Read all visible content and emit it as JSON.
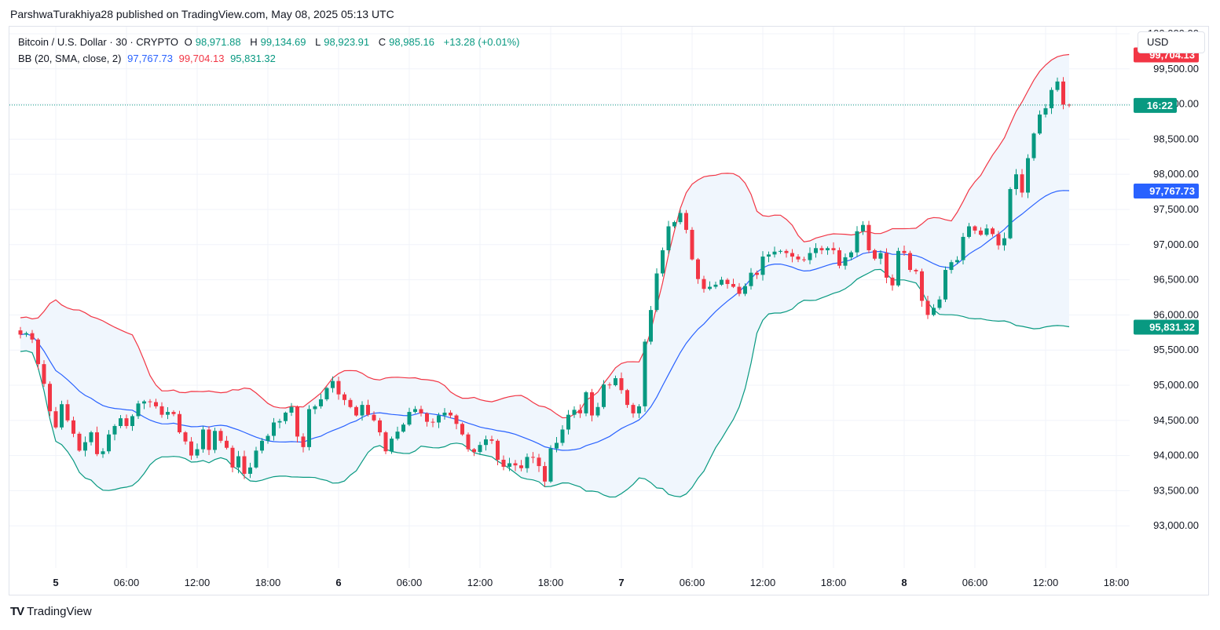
{
  "header": {
    "publish_line": "ParshwaTurakhiya28 published on TradingView.com, May 08, 2025 05:13 UTC"
  },
  "legend": {
    "symbol": "Bitcoin / U.S. Dollar · 30 · CRYPTO",
    "o_label": "O",
    "o_value": "98,971.88",
    "h_label": "H",
    "h_value": "99,134.69",
    "l_label": "L",
    "l_value": "98,923.91",
    "c_label": "C",
    "c_value": "98,985.16",
    "change": "+13.28 (+0.01%)",
    "indicator": "BB (20, SMA, close, 2)",
    "bb_mid": "97,767.73",
    "bb_upper": "99,704.13",
    "bb_lower": "95,831.32"
  },
  "price_scale": {
    "currency": "USD",
    "countdown_label": "16:22"
  },
  "brand": {
    "logo": "TV",
    "name": "TradingView"
  },
  "colors": {
    "up": "#089981",
    "down": "#f23645",
    "bb_mid": "#2962ff",
    "bb_upper": "#f23645",
    "bb_lower": "#089981",
    "bb_fill": "#f0f6fd",
    "grid": "#f0f3fa",
    "axis_text": "#131722"
  },
  "chart_data": {
    "type": "candlestick",
    "y_ticks": [
      93000,
      93500,
      94000,
      94500,
      95000,
      95500,
      96000,
      96500,
      97000,
      97500,
      98000,
      98500,
      99000,
      99500,
      100000
    ],
    "ylim": [
      92400,
      100100
    ],
    "x_ticks": [
      {
        "label": "5",
        "day": true,
        "idx": 6
      },
      {
        "label": "06:00",
        "idx": 18
      },
      {
        "label": "12:00",
        "idx": 30
      },
      {
        "label": "18:00",
        "idx": 42
      },
      {
        "label": "6",
        "day": true,
        "idx": 54
      },
      {
        "label": "06:00",
        "idx": 66
      },
      {
        "label": "12:00",
        "idx": 78
      },
      {
        "label": "18:00",
        "idx": 90
      },
      {
        "label": "7",
        "day": true,
        "idx": 102
      },
      {
        "label": "06:00",
        "idx": 114
      },
      {
        "label": "12:00",
        "idx": 126
      },
      {
        "label": "18:00",
        "idx": 138
      },
      {
        "label": "8",
        "day": true,
        "idx": 150
      },
      {
        "label": "06:00",
        "idx": 162
      },
      {
        "label": "12:00",
        "idx": 174
      },
      {
        "label": "18:00",
        "idx": 186
      }
    ],
    "closes": [
      95720,
      95740,
      95650,
      95300,
      95020,
      94630,
      94400,
      94730,
      94500,
      94310,
      94070,
      94190,
      94330,
      94020,
      94060,
      94300,
      94420,
      94530,
      94420,
      94560,
      94740,
      94770,
      94760,
      94700,
      94580,
      94620,
      94590,
      94330,
      94200,
      94000,
      94090,
      94370,
      94080,
      94350,
      94210,
      94110,
      93830,
      93990,
      93740,
      93830,
      94070,
      94210,
      94280,
      94470,
      94490,
      94610,
      94690,
      94270,
      94120,
      94660,
      94700,
      94800,
      94960,
      95060,
      94870,
      94790,
      94690,
      94570,
      94720,
      94580,
      94500,
      94330,
      94060,
      94240,
      94340,
      94440,
      94620,
      94660,
      94600,
      94480,
      94470,
      94570,
      94610,
      94570,
      94450,
      94300,
      94090,
      94050,
      94150,
      94230,
      94210,
      93940,
      93840,
      93890,
      93860,
      93820,
      93980,
      93970,
      93850,
      93630,
      94100,
      94180,
      94370,
      94580,
      94650,
      94600,
      94900,
      94570,
      94690,
      95010,
      95000,
      95100,
      94930,
      94720,
      94600,
      94700,
      95620,
      96070,
      96590,
      96920,
      97260,
      97320,
      97450,
      97210,
      96790,
      96510,
      96370,
      96400,
      96430,
      96500,
      96440,
      96400,
      96300,
      96410,
      96600,
      96570,
      96830,
      96860,
      96900,
      96910,
      96880,
      96830,
      96790,
      96780,
      96880,
      96950,
      96920,
      96950,
      96920,
      96700,
      96820,
      96890,
      97190,
      97280,
      96920,
      96800,
      96880,
      96530,
      96420,
      96910,
      96880,
      96640,
      96620,
      96200,
      96000,
      96100,
      96220,
      96640,
      96750,
      96780,
      97110,
      97260,
      97200,
      97140,
      97230,
      97150,
      96990,
      97090,
      97790,
      98000,
      97740,
      98230,
      98580,
      98850,
      98940,
      99200,
      99320,
      98990,
      98985
    ]
  }
}
